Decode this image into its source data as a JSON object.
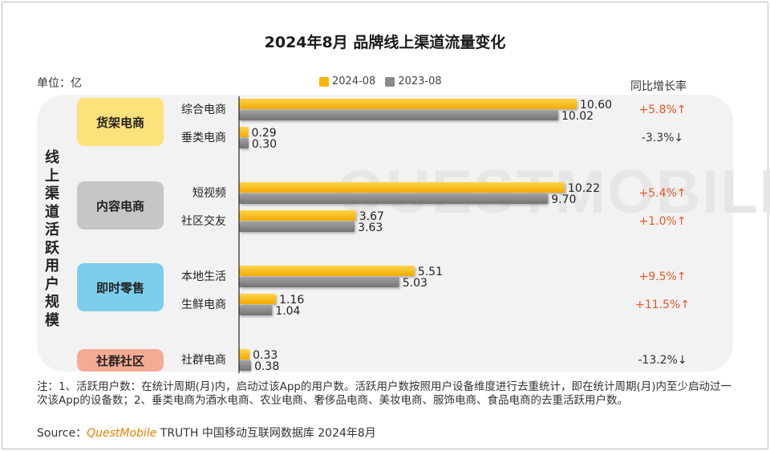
{
  "title": "2024年8月 品牌线上渠道流量变化",
  "unit_label": "单位：亿",
  "yoy_header": "同比增长率",
  "axis_label": "线上渠道活跃用户规模",
  "colors": {
    "series_2024": "#f7b500",
    "series_2023": "#8a8a8a",
    "up": "#e8562a",
    "down": "#333333",
    "panel": "#f2f2f2"
  },
  "groups": [
    {
      "name": "货架电商",
      "color": "#fde17a"
    },
    {
      "name": "内容电商",
      "color": "#c6c6c6"
    },
    {
      "name": "即时零售",
      "color": "#7dcdec"
    },
    {
      "name": "社群社区",
      "color": "#f4ab93"
    }
  ],
  "chart_data": {
    "type": "bar",
    "orientation": "horizontal",
    "categories": [
      "综合电商",
      "垂类电商",
      "短视频",
      "社区交友",
      "本地生活",
      "生鲜电商",
      "社群电商"
    ],
    "category_groups": [
      "货架电商",
      "货架电商",
      "内容电商",
      "内容电商",
      "即时零售",
      "即时零售",
      "社群社区"
    ],
    "series": [
      {
        "name": "2024-08",
        "values": [
          10.6,
          0.29,
          10.22,
          3.67,
          5.51,
          1.16,
          0.33
        ],
        "labels": [
          "10.60",
          "0.29",
          "10.22",
          "3.67",
          "5.51",
          "1.16",
          "0.33"
        ]
      },
      {
        "name": "2023-08",
        "values": [
          10.02,
          0.3,
          9.7,
          3.63,
          5.03,
          1.04,
          0.38
        ],
        "labels": [
          "10.02",
          "0.30",
          "9.70",
          "3.63",
          "5.03",
          "1.04",
          "0.38"
        ]
      }
    ],
    "yoy": [
      "+5.8%↑",
      "-3.3%↓",
      "+5.4%↑",
      "+1.0%↑",
      "+9.5%↑",
      "+11.5%↑",
      "-13.2%↓"
    ],
    "xlim": [
      0,
      10.6
    ],
    "legend_position": "top",
    "grid": false
  },
  "watermark": "QUESTMOBILE",
  "note": "注：1、活跃用户数：在统计周期(月)内，启动过该App的用户数。活跃用户数按照用户设备维度进行去重统计，即在统计周期(月)内至少启动过一次该App的设备数；2、垂类电商为酒水电商、农业电商、奢侈品电商、美妆电商、服饰电商、食品电商的去重活跃用户数。",
  "source": {
    "prefix": "Source：",
    "brand": "QuestMobile",
    "rest": " TRUTH 中国移动互联网数据库 2024年8月"
  }
}
